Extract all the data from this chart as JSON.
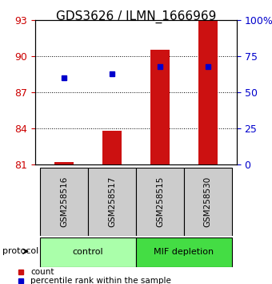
{
  "title": "GDS3626 / ILMN_1666969",
  "samples": [
    "GSM258516",
    "GSM258517",
    "GSM258515",
    "GSM258530"
  ],
  "groups": [
    {
      "label": "control",
      "indices": [
        0,
        1
      ],
      "color": "#aaffaa"
    },
    {
      "label": "MIF depletion",
      "indices": [
        2,
        3
      ],
      "color": "#44dd44"
    }
  ],
  "red_bar_values": [
    81.2,
    83.8,
    90.5,
    93.0
  ],
  "blue_square_values": [
    88.2,
    88.5,
    89.15,
    89.15
  ],
  "ymin": 81,
  "ymax": 93,
  "yticks_left": [
    81,
    84,
    87,
    90,
    93
  ],
  "yticks_right": [
    0,
    25,
    50,
    75,
    100
  ],
  "yticks_right_labels": [
    "0",
    "25",
    "50",
    "75",
    "100%"
  ],
  "left_axis_color": "#cc0000",
  "right_axis_color": "#0000cc",
  "bar_color": "#cc1111",
  "square_color": "#0000cc",
  "background_color": "#ffffff",
  "plot_bg": "#ffffff",
  "grid_color": "#000000",
  "protocol_label": "protocol",
  "group_header_bg": "#cccccc",
  "title_fontsize": 11,
  "tick_fontsize": 9,
  "label_fontsize": 9
}
